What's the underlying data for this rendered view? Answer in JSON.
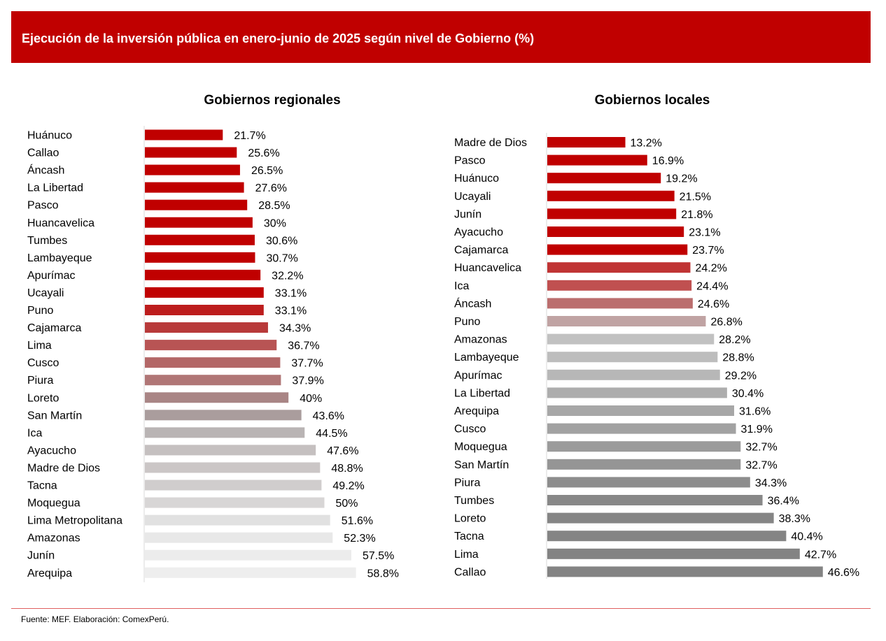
{
  "header": {
    "title": "Ejecución de la inversión pública en enero-junio de 2025 según nivel de Gobierno (%)"
  },
  "chart_data": [
    {
      "type": "bar",
      "orientation": "horizontal",
      "title": "Gobiernos regionales",
      "categories": [
        "Huánuco",
        "Callao",
        "Áncash",
        "La Libertad",
        "Pasco",
        "Huancavelica",
        "Tumbes",
        "Lambayeque",
        "Apurímac",
        "Ucayali",
        "Puno",
        "Cajamarca",
        "Lima",
        "Cusco",
        "Piura",
        "Loreto",
        "San Martín",
        "Ica",
        "Ayacucho",
        "Madre de Dios",
        "Tacna",
        "Moquegua",
        "Lima Metropolitana",
        "Amazonas",
        "Junín",
        "Arequipa"
      ],
      "values": [
        21.7,
        25.6,
        26.5,
        27.6,
        28.5,
        30,
        30.6,
        30.7,
        32.2,
        33.1,
        33.1,
        34.3,
        36.7,
        37.7,
        37.9,
        40,
        43.6,
        44.5,
        47.6,
        48.8,
        49.2,
        50,
        51.6,
        52.3,
        57.5,
        58.8
      ],
      "labels": [
        "21.7%",
        "25.6%",
        "26.5%",
        "27.6%",
        "28.5%",
        "30%",
        "30.6%",
        "30.7%",
        "32.2%",
        "33.1%",
        "33.1%",
        "34.3%",
        "36.7%",
        "37.7%",
        "37.9%",
        "40%",
        "43.6%",
        "44.5%",
        "47.6%",
        "48.8%",
        "49.2%",
        "50%",
        "51.6%",
        "52.3%",
        "57.5%",
        "58.8%"
      ],
      "colors": [
        "#c00000",
        "#c00000",
        "#c00000",
        "#c00000",
        "#c00000",
        "#c00000",
        "#c00000",
        "#c00000",
        "#c00000",
        "#c00101",
        "#bd1d1d",
        "#b83a3a",
        "#b85454",
        "#b36767",
        "#b07676",
        "#a98585",
        "#aa9d9d",
        "#b9b4b4",
        "#c5c0c0",
        "#cbc6c6",
        "#d0cdcd",
        "#d8d6d6",
        "#e1e1e1",
        "#e8e8e8",
        "#ececec",
        "#eeeeee"
      ],
      "xlim": [
        0,
        100
      ],
      "legend": "none",
      "grid": false
    },
    {
      "type": "bar",
      "orientation": "horizontal",
      "title": "Gobiernos locales",
      "categories": [
        "Madre de Dios",
        "Pasco",
        "Huánuco",
        "Ucayali",
        "Junín",
        "Ayacucho",
        "Cajamarca",
        "Huancavelica",
        "Ica",
        "Áncash",
        "Puno",
        "Amazonas",
        "Lambayeque",
        "Apurímac",
        "La Libertad",
        "Arequipa",
        "Cusco",
        "Moquegua",
        "San Martín",
        "Piura",
        "Tumbes",
        "Loreto",
        "Tacna",
        "Lima",
        "Callao"
      ],
      "values": [
        13.2,
        16.9,
        19.2,
        21.5,
        21.8,
        23.1,
        23.7,
        24.2,
        24.4,
        24.6,
        26.8,
        28.2,
        28.8,
        29.2,
        30.4,
        31.6,
        31.9,
        32.7,
        32.7,
        34.3,
        36.4,
        38.3,
        40.4,
        42.7,
        46.6
      ],
      "labels": [
        "13.2%",
        "16.9%",
        "19.2%",
        "21.5%",
        "21.8%",
        "23.1%",
        "23.7%",
        "24.2%",
        "24.4%",
        "24.6%",
        "26.8%",
        "28.2%",
        "28.8%",
        "29.2%",
        "30.4%",
        "31.6%",
        "31.9%",
        "32.7%",
        "32.7%",
        "34.3%",
        "36.4%",
        "38.3%",
        "40.4%",
        "42.7%",
        "46.6%"
      ],
      "colors": [
        "#c00000",
        "#c00000",
        "#c00000",
        "#c00000",
        "#c00000",
        "#c00000",
        "#c00000",
        "#c03434",
        "#c05050",
        "#bb6e6e",
        "#c0a3a3",
        "#c1c1c1",
        "#bdbdbd",
        "#b7b7b7",
        "#adadad",
        "#a7a7a7",
        "#a2a2a2",
        "#9b9b9b",
        "#959595",
        "#8d8d8d",
        "#888888",
        "#858585",
        "#848484",
        "#838383",
        "#838383"
      ],
      "xlim": [
        0,
        100
      ],
      "legend": "none",
      "grid": false
    }
  ],
  "footer": {
    "source": "Fuente: MEF. Elaboración: ComexPerú."
  }
}
